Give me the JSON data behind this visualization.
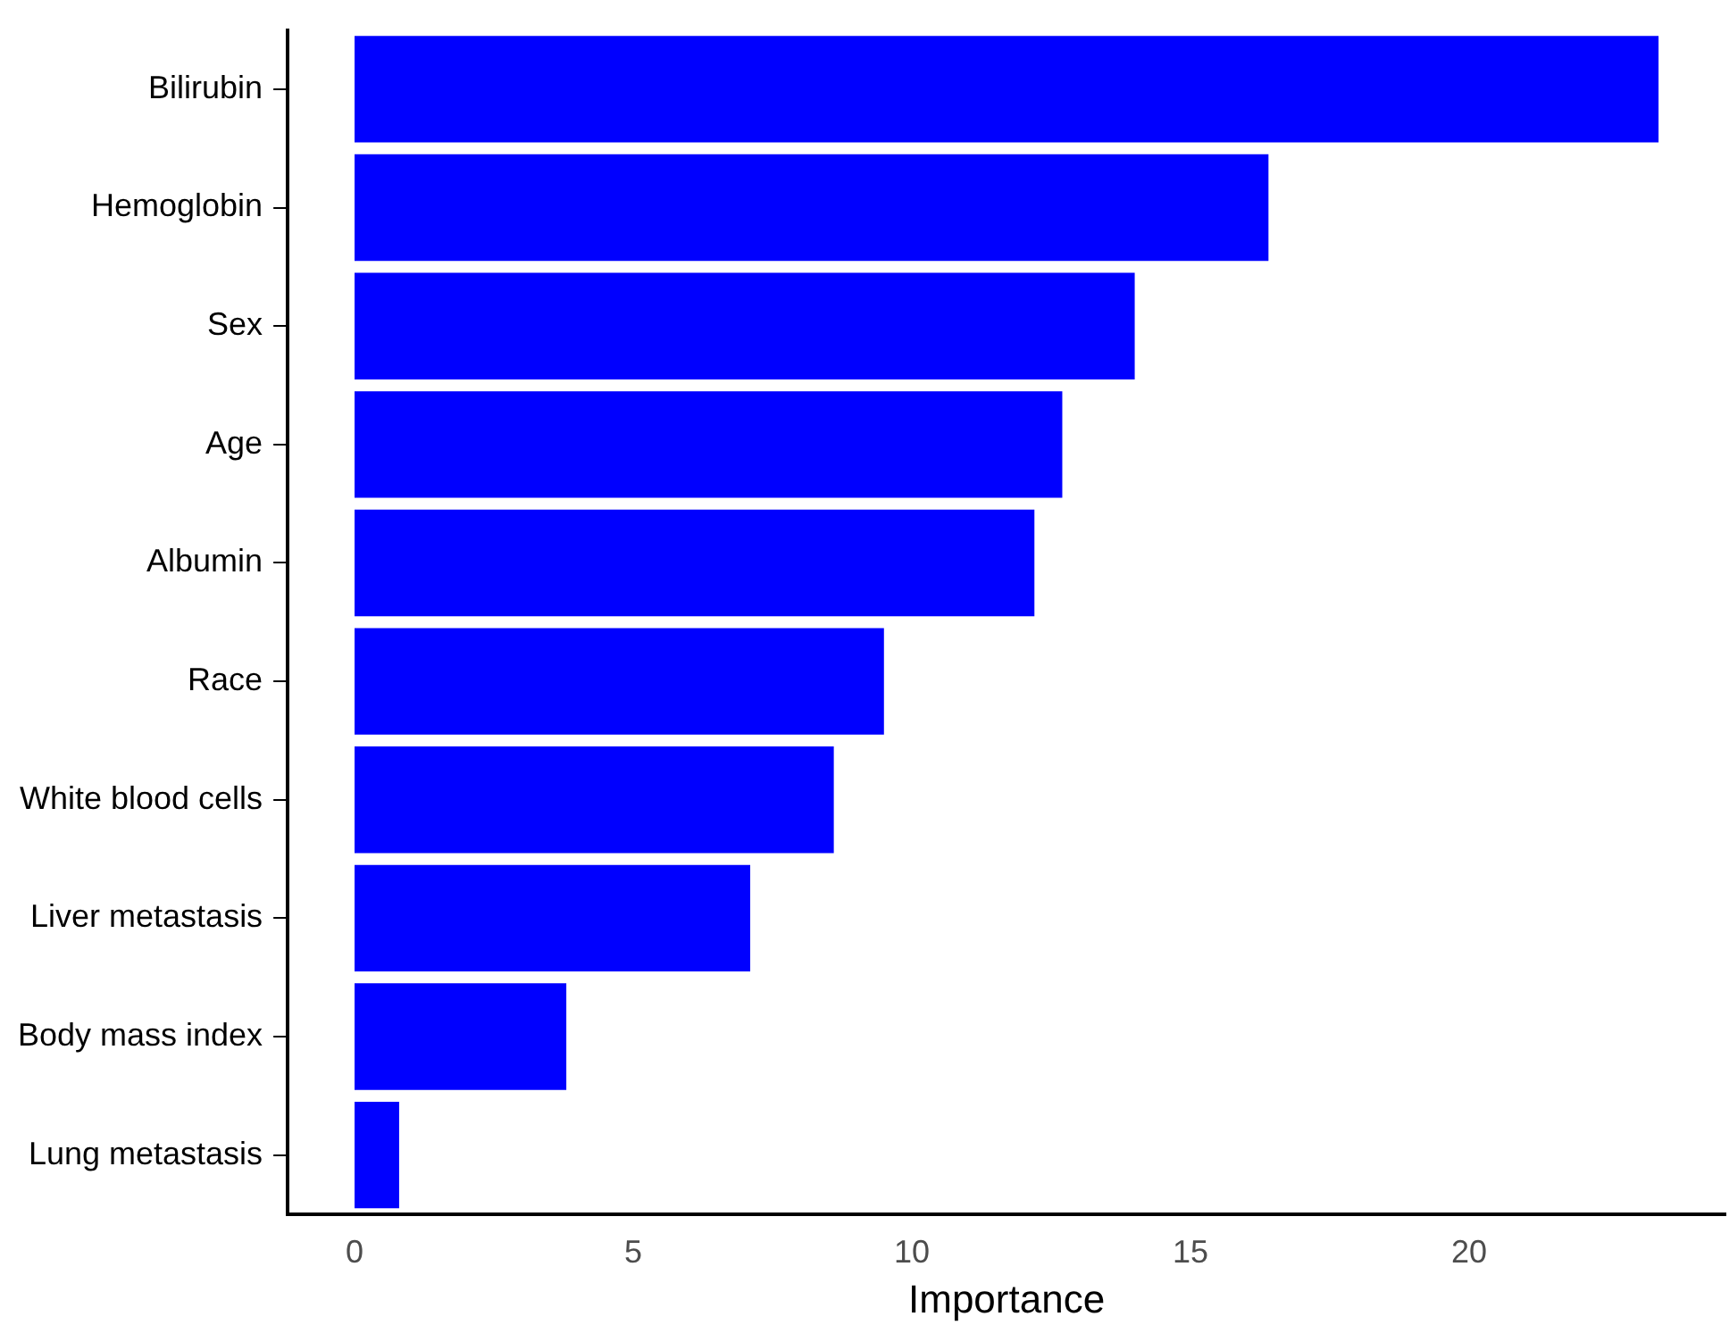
{
  "chart_data": {
    "type": "bar",
    "orientation": "horizontal",
    "xlabel": "Importance",
    "categories": [
      "Bilirubin",
      "Hemoglobin",
      "Sex",
      "Age",
      "Albumin",
      "Race",
      "White blood cells",
      "Liver metastasis",
      "Body mass index",
      "Lung metastasis"
    ],
    "values": [
      23.4,
      16.4,
      14.0,
      12.7,
      12.2,
      9.5,
      8.6,
      7.1,
      3.8,
      0.8
    ],
    "color": "#0000ff",
    "xlim": [
      -1.2,
      24.6
    ],
    "xticks": [
      0,
      5,
      10,
      15,
      20
    ],
    "grid": false,
    "legend": false
  }
}
